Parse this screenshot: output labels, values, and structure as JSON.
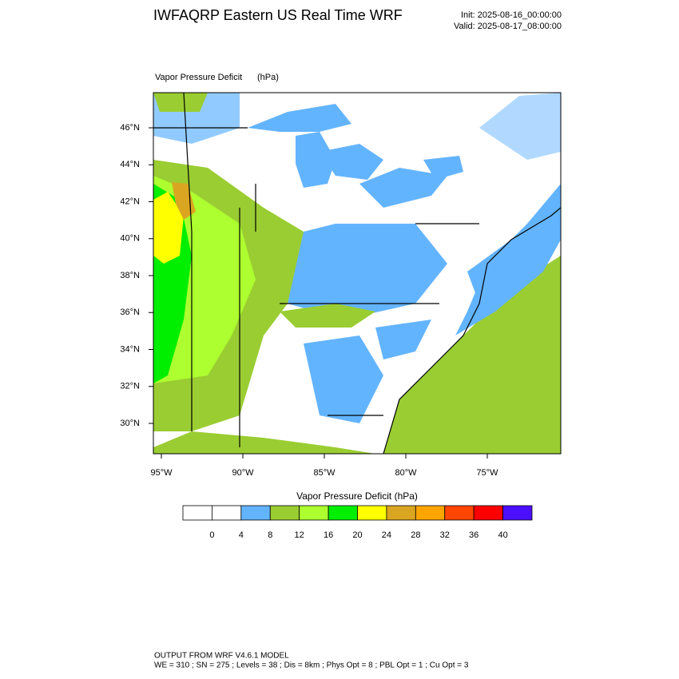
{
  "header": {
    "title": "IWFAQRP Eastern US Real Time WRF",
    "init": "Init: 2025-08-16_00:00:00",
    "valid": "Valid: 2025-08-17_08:00:00"
  },
  "map": {
    "field": "Vapor Pressure Deficit",
    "units": "(hPa)",
    "lat_ticks": [
      {
        "value": 30,
        "label": "30°N"
      },
      {
        "value": 32,
        "label": "32°N"
      },
      {
        "value": 34,
        "label": "34°N"
      },
      {
        "value": 36,
        "label": "36°N"
      },
      {
        "value": 38,
        "label": "38°N"
      },
      {
        "value": 40,
        "label": "40°N"
      },
      {
        "value": 42,
        "label": "42°N"
      },
      {
        "value": 44,
        "label": "44°N"
      },
      {
        "value": 46,
        "label": "46°N"
      }
    ],
    "lon_ticks": [
      {
        "value": -95,
        "label": "95°W"
      },
      {
        "value": -90,
        "label": "90°W"
      },
      {
        "value": -85,
        "label": "85°W"
      },
      {
        "value": -80,
        "label": "80°W"
      },
      {
        "value": -75,
        "label": "75°W"
      }
    ]
  },
  "colorbar": {
    "title": "Vapor Pressure Deficit  (hPa)",
    "levels": [
      0,
      4,
      8,
      12,
      16,
      20,
      24,
      28,
      32,
      36,
      40
    ],
    "colors": [
      "#ffffff",
      "#ffffff",
      "#63b4ff",
      "#9acd32",
      "#adff2f",
      "#00ee00",
      "#ffff00",
      "#daa520",
      "#ffa500",
      "#ff4500",
      "#ff0000",
      "#4b0fff"
    ]
  },
  "footer": {
    "line1": "OUTPUT FROM WRF V4.6.1 MODEL",
    "line2": "WE = 310 ; SN = 275 ; Levels = 38 ; Dis = 8km ; Phys Opt = 8 ; PBL Opt = 1 ; Cu Opt = 3"
  }
}
